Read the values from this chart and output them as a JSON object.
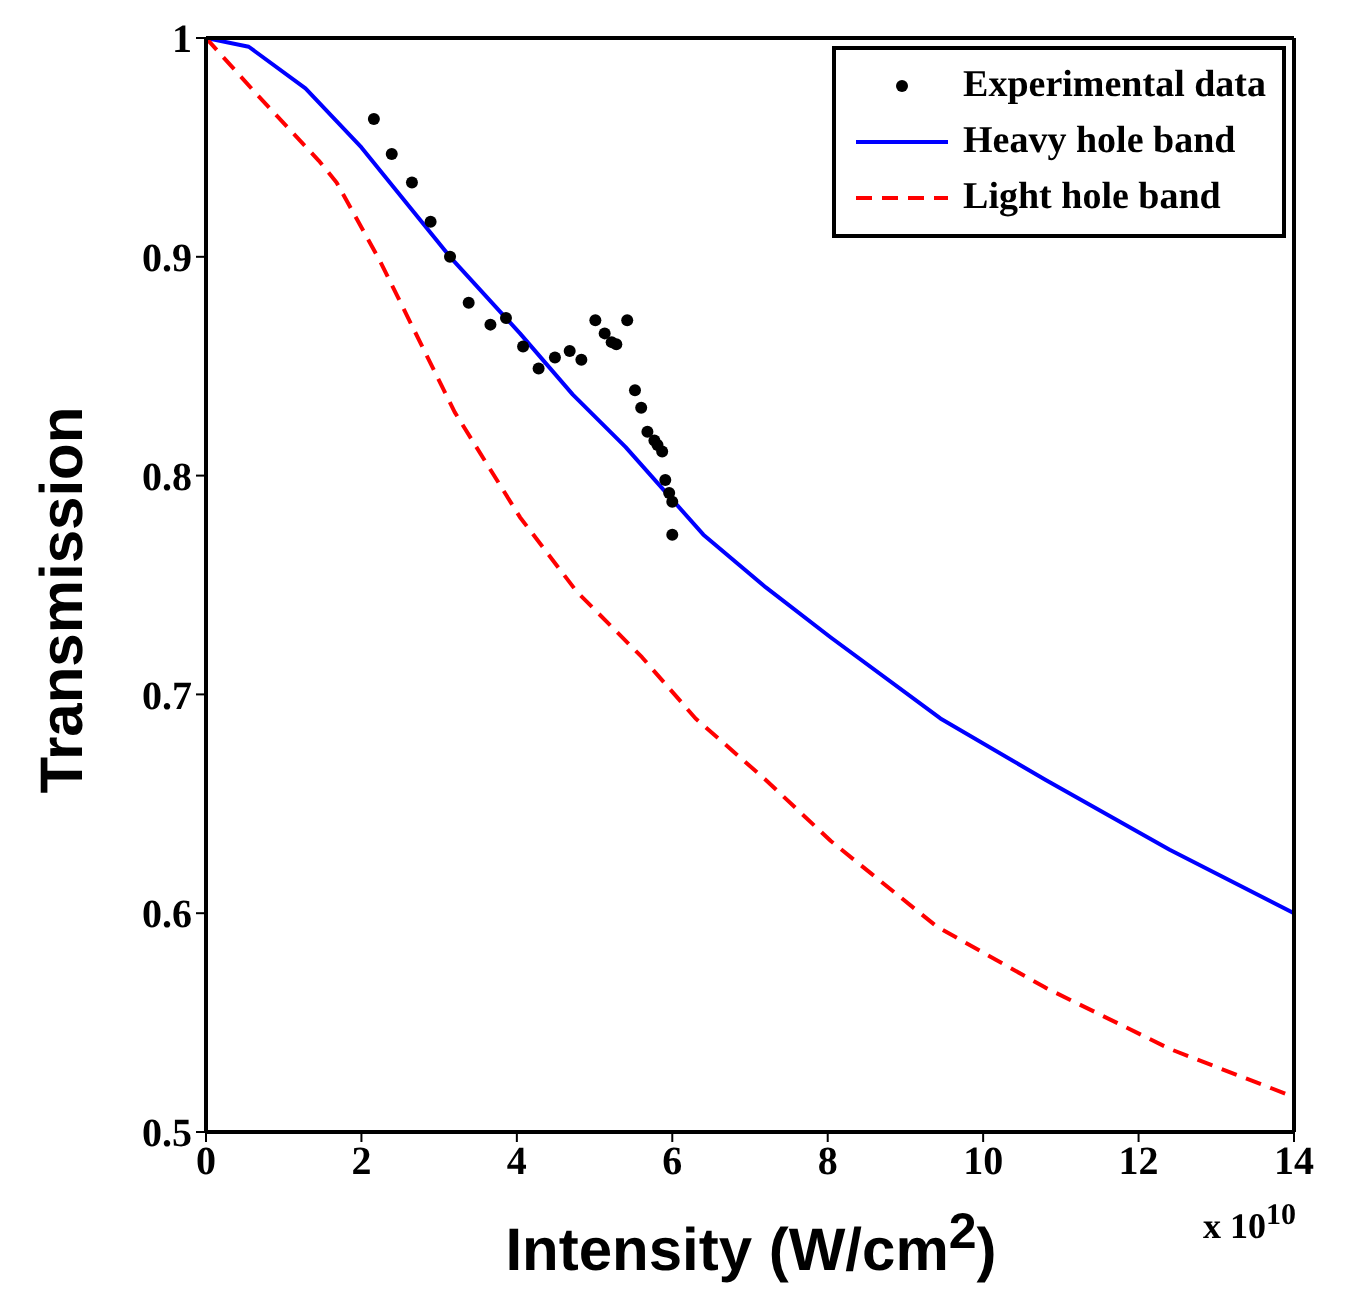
{
  "chart_data": {
    "type": "line",
    "xlabel": "Intensity (W/cm$^{2}$)",
    "ylabel": "Transmission",
    "annotations": [
      "x 10$^{10}$"
    ],
    "xlim": [
      0,
      14
    ],
    "xticks": [
      0,
      2,
      4,
      6,
      8,
      10,
      12,
      14
    ],
    "ylim": [
      0.5,
      1
    ],
    "yticks": [
      0.5,
      0.6,
      0.7,
      0.8,
      0.9,
      1
    ],
    "grid": false,
    "legend": "top right",
    "series": [
      {
        "name": "Experimental data",
        "type": "scatter",
        "marker": "circle",
        "color": "#000000",
        "x": [
          2.16,
          2.39,
          2.65,
          2.89,
          3.14,
          3.38,
          3.66,
          3.86,
          4.08,
          4.28,
          4.49,
          4.68,
          4.83,
          5.01,
          5.13,
          5.22,
          5.28,
          5.42,
          5.52,
          5.6,
          5.68,
          5.77,
          5.81,
          5.87,
          5.91,
          5.96,
          6.0,
          6.0
        ],
        "values": [
          0.963,
          0.947,
          0.934,
          0.916,
          0.9,
          0.879,
          0.869,
          0.872,
          0.859,
          0.849,
          0.854,
          0.857,
          0.853,
          0.871,
          0.865,
          0.861,
          0.86,
          0.871,
          0.839,
          0.831,
          0.82,
          0.816,
          0.814,
          0.811,
          0.798,
          0.792,
          0.788,
          0.773
        ]
      },
      {
        "name": "Heavy hole band",
        "type": "line",
        "line_style": "solid",
        "color": "#0000ff",
        "x": [
          0,
          0.55,
          1.28,
          2.0,
          3.14,
          4.04,
          4.72,
          5.4,
          6.0,
          6.4,
          7.2,
          8.04,
          9.45,
          10.8,
          12.4,
          14
        ],
        "values": [
          1,
          0.996,
          0.977,
          0.95,
          0.9,
          0.865,
          0.837,
          0.813,
          0.789,
          0.773,
          0.749,
          0.726,
          0.689,
          0.661,
          0.629,
          0.6
        ]
      },
      {
        "name": "Light hole band",
        "type": "line",
        "line_style": "dashed",
        "color": "#ff0000",
        "x": [
          0,
          0.66,
          1.45,
          1.68,
          2.24,
          3.2,
          4.04,
          4.77,
          5.61,
          6.3,
          7.2,
          8.04,
          9.4,
          10.8,
          12.4,
          14
        ],
        "values": [
          1,
          0.974,
          0.944,
          0.934,
          0.898,
          0.829,
          0.781,
          0.747,
          0.717,
          0.689,
          0.661,
          0.633,
          0.594,
          0.566,
          0.538,
          0.516
        ]
      }
    ]
  }
}
